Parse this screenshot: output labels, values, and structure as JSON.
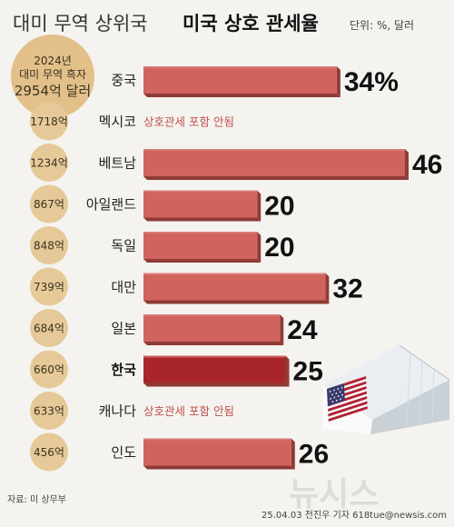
{
  "header": {
    "title_light": "대미 무역 상위국",
    "title_bold": "미국 상호 관세율",
    "unit": "단위: %, 달러"
  },
  "surplus_header": {
    "line1": "2024년",
    "line2": "대미 무역 흑자",
    "line3": "2954억 달러"
  },
  "chart_data": {
    "type": "bar",
    "orientation": "horizontal",
    "categories": [
      "중국",
      "멕시코",
      "베트남",
      "아일랜드",
      "독일",
      "대만",
      "일본",
      "한국",
      "캐나다",
      "인도"
    ],
    "values": [
      34,
      null,
      46,
      20,
      20,
      32,
      24,
      25,
      null,
      26
    ],
    "value_labels": [
      "34%",
      "",
      "46",
      "20",
      "20",
      "32",
      "24",
      "25",
      "",
      "26"
    ],
    "notes": [
      "",
      "상호관세 포함 안됨",
      "",
      "",
      "",
      "",
      "",
      "",
      "상호관세 포함 안됨",
      ""
    ],
    "trade_surplus": [
      "",
      "1718억",
      "1234억",
      "867억",
      "848억",
      "739억",
      "684억",
      "660억",
      "633억",
      "456억"
    ],
    "highlight": "한국",
    "xlim": [
      0,
      46
    ],
    "colors": {
      "bar": "#d0635d",
      "bar_highlight": "#a8262a",
      "bar_shadow": "#8f3b37",
      "bar_top": "#de8a85",
      "circle": "#e6c998",
      "circle_top": "#e3c08a",
      "note": "#c0504d"
    }
  },
  "footer": {
    "source": "자료: 미 상무부",
    "credit": "25.04.03 전진우 기자 618tue@newsis.com"
  },
  "watermark": "뉴시스"
}
